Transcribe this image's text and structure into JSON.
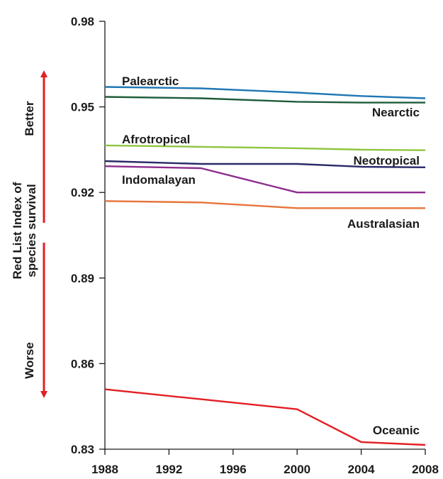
{
  "chart_data": {
    "type": "line",
    "title": "",
    "xlabel": "",
    "ylabel": "Red List Index of species survival",
    "ylabel_lines": [
      "Red List Index of",
      "species survival"
    ],
    "xlim": [
      1988,
      2008
    ],
    "ylim": [
      0.83,
      0.98
    ],
    "x_ticks": [
      1988,
      1992,
      1996,
      2000,
      2004,
      2008
    ],
    "y_ticks": [
      0.83,
      0.86,
      0.89,
      0.92,
      0.95,
      0.98
    ],
    "y_tick_labels": [
      "0.83",
      "0.86",
      "0.89",
      "0.92",
      "0.95",
      "0.98"
    ],
    "grid": false,
    "legend": "none",
    "direction_labels": {
      "better": "Better",
      "worse": "Worse",
      "arrow_color": "#e31e24"
    },
    "series": [
      {
        "name": "Palearctic",
        "color": "#1f77b4",
        "x": [
          1988,
          1994,
          2000,
          2004,
          2008
        ],
        "y": [
          0.957,
          0.9565,
          0.955,
          0.9538,
          0.953
        ]
      },
      {
        "name": "Nearctic",
        "color": "#1e5c3a",
        "x": [
          1988,
          1994,
          2000,
          2004,
          2008
        ],
        "y": [
          0.9535,
          0.953,
          0.9518,
          0.9515,
          0.9515
        ]
      },
      {
        "name": "Afrotropical",
        "color": "#8dc63f",
        "x": [
          1988,
          1994,
          2000,
          2004,
          2008
        ],
        "y": [
          0.9365,
          0.936,
          0.9355,
          0.935,
          0.9348
        ]
      },
      {
        "name": "Neotropical",
        "color": "#2b2a6b",
        "x": [
          1988,
          1994,
          2000,
          2004,
          2008
        ],
        "y": [
          0.931,
          0.93,
          0.93,
          0.929,
          0.9288
        ]
      },
      {
        "name": "Indomalayan",
        "color": "#8e2c8f",
        "x": [
          1988,
          1994,
          2000,
          2004,
          2008
        ],
        "y": [
          0.9292,
          0.9285,
          0.92,
          0.92,
          0.92
        ]
      },
      {
        "name": "Australasian",
        "color": "#e8743b",
        "x": [
          1988,
          1994,
          2000,
          2004,
          2008
        ],
        "y": [
          0.917,
          0.9165,
          0.9145,
          0.9145,
          0.9145
        ]
      },
      {
        "name": "Oceanic",
        "color": "#e31e24",
        "x": [
          1988,
          1994,
          2000,
          2004,
          2008
        ],
        "y": [
          0.851,
          0.8475,
          0.844,
          0.8325,
          0.8315
        ]
      }
    ]
  }
}
